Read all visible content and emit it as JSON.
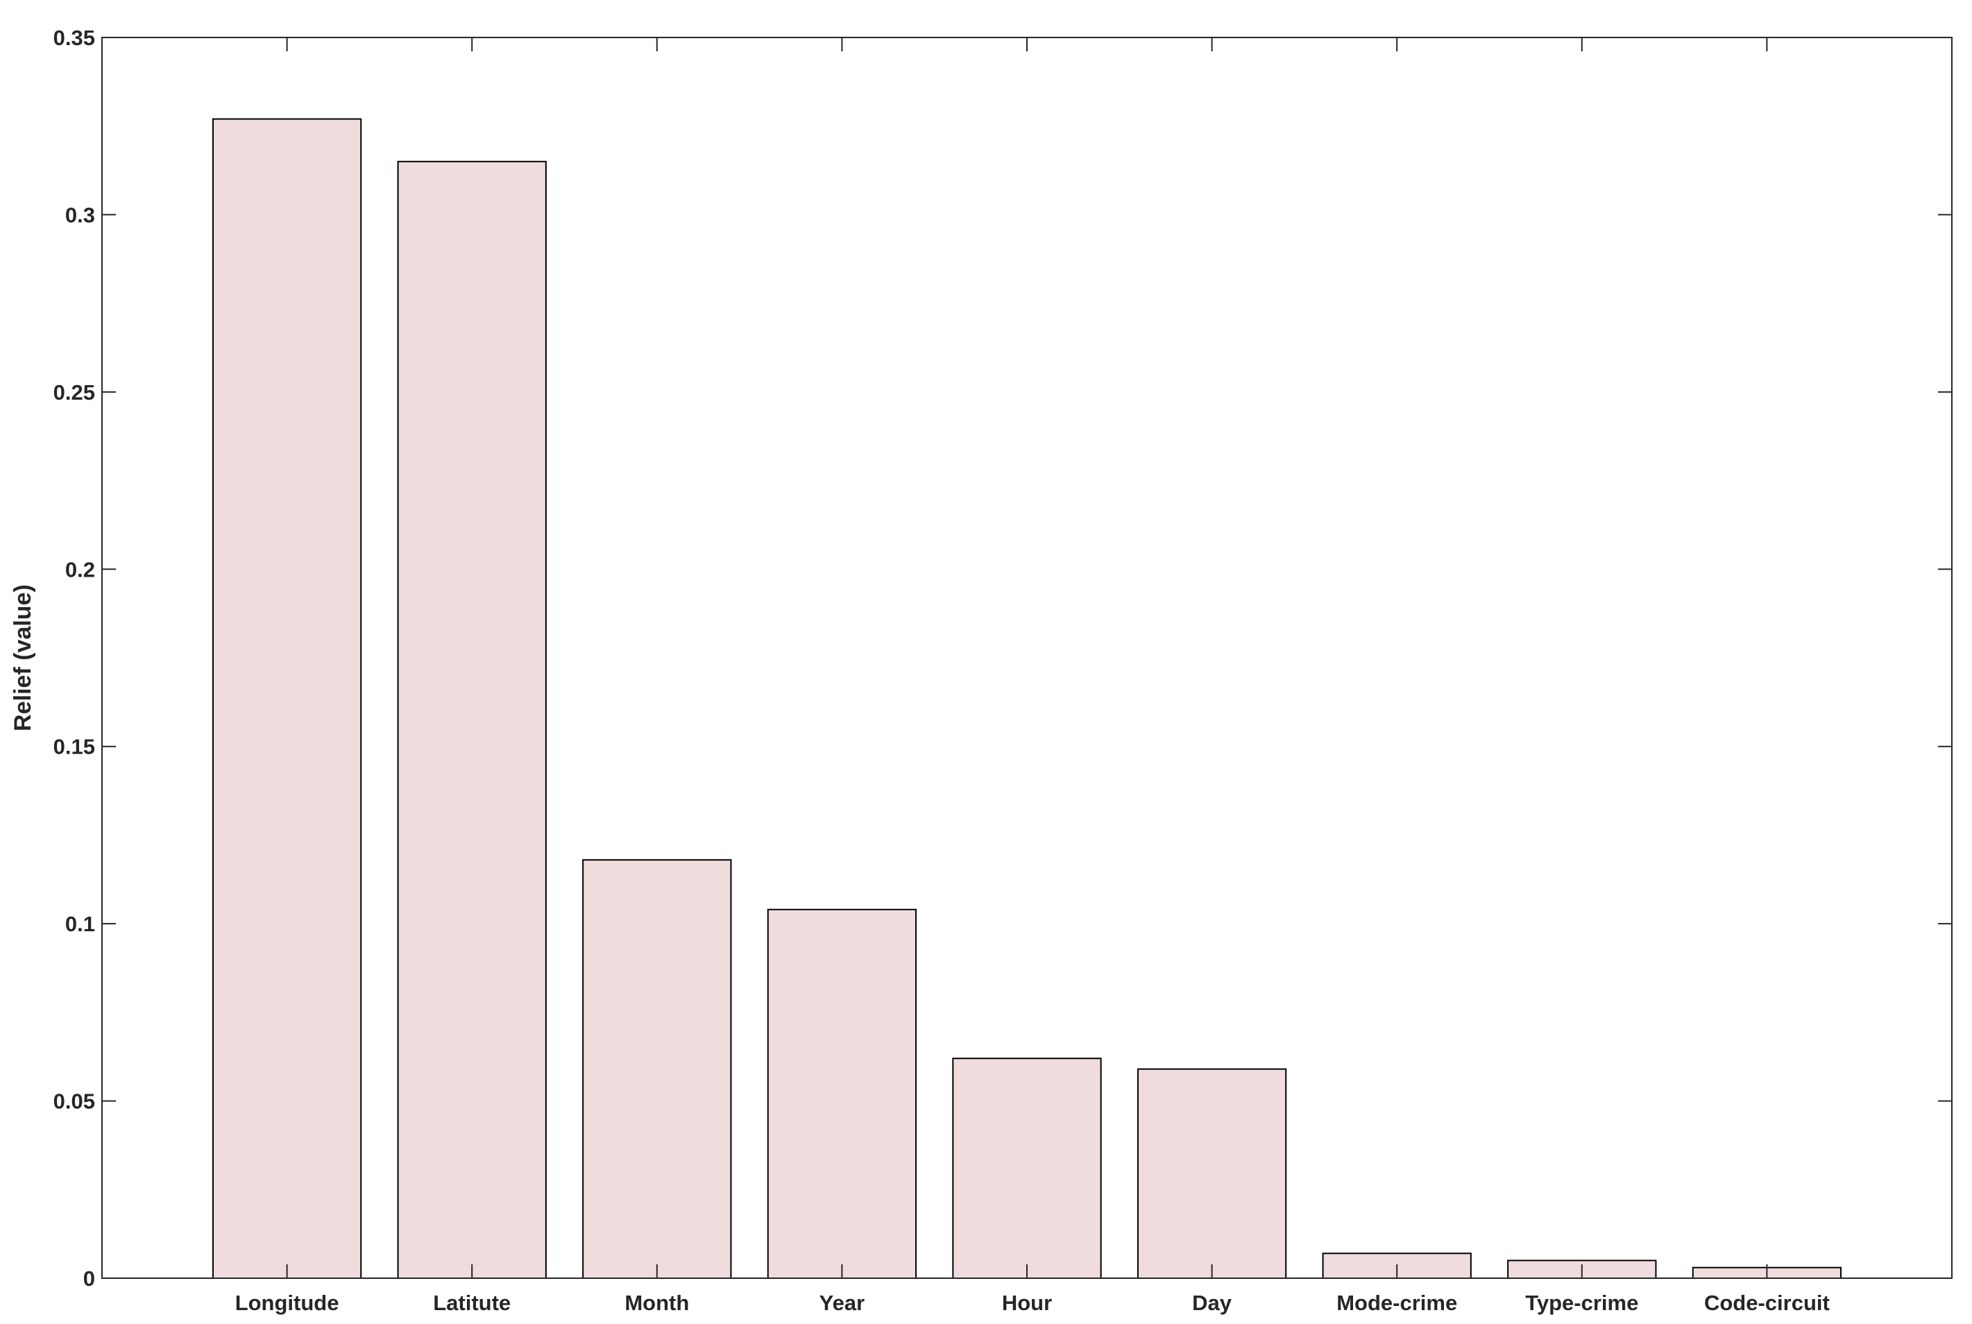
{
  "chart_data": {
    "type": "bar",
    "title": "",
    "xlabel": "",
    "ylabel": "Relief (value)",
    "categories": [
      "Longitude",
      "Latitute",
      "Month",
      "Year",
      "Hour",
      "Day",
      "Mode-crime",
      "Type-crime",
      "Code-circuit"
    ],
    "values": [
      0.327,
      0.315,
      0.118,
      0.104,
      0.062,
      0.059,
      0.007,
      0.005,
      0.003
    ],
    "ylim": [
      0,
      0.35
    ],
    "yticks": [
      0,
      0.05,
      0.1,
      0.15,
      0.2,
      0.25,
      0.3,
      0.35
    ],
    "ytick_labels": [
      "0",
      "0.05",
      "0.1",
      "0.15",
      "0.2",
      "0.25",
      "0.3",
      "0.35"
    ],
    "xlim": [
      0,
      10
    ],
    "grid": false,
    "legend": "none",
    "bar_color": "#f0dcdc",
    "edge_color": "#000000"
  }
}
